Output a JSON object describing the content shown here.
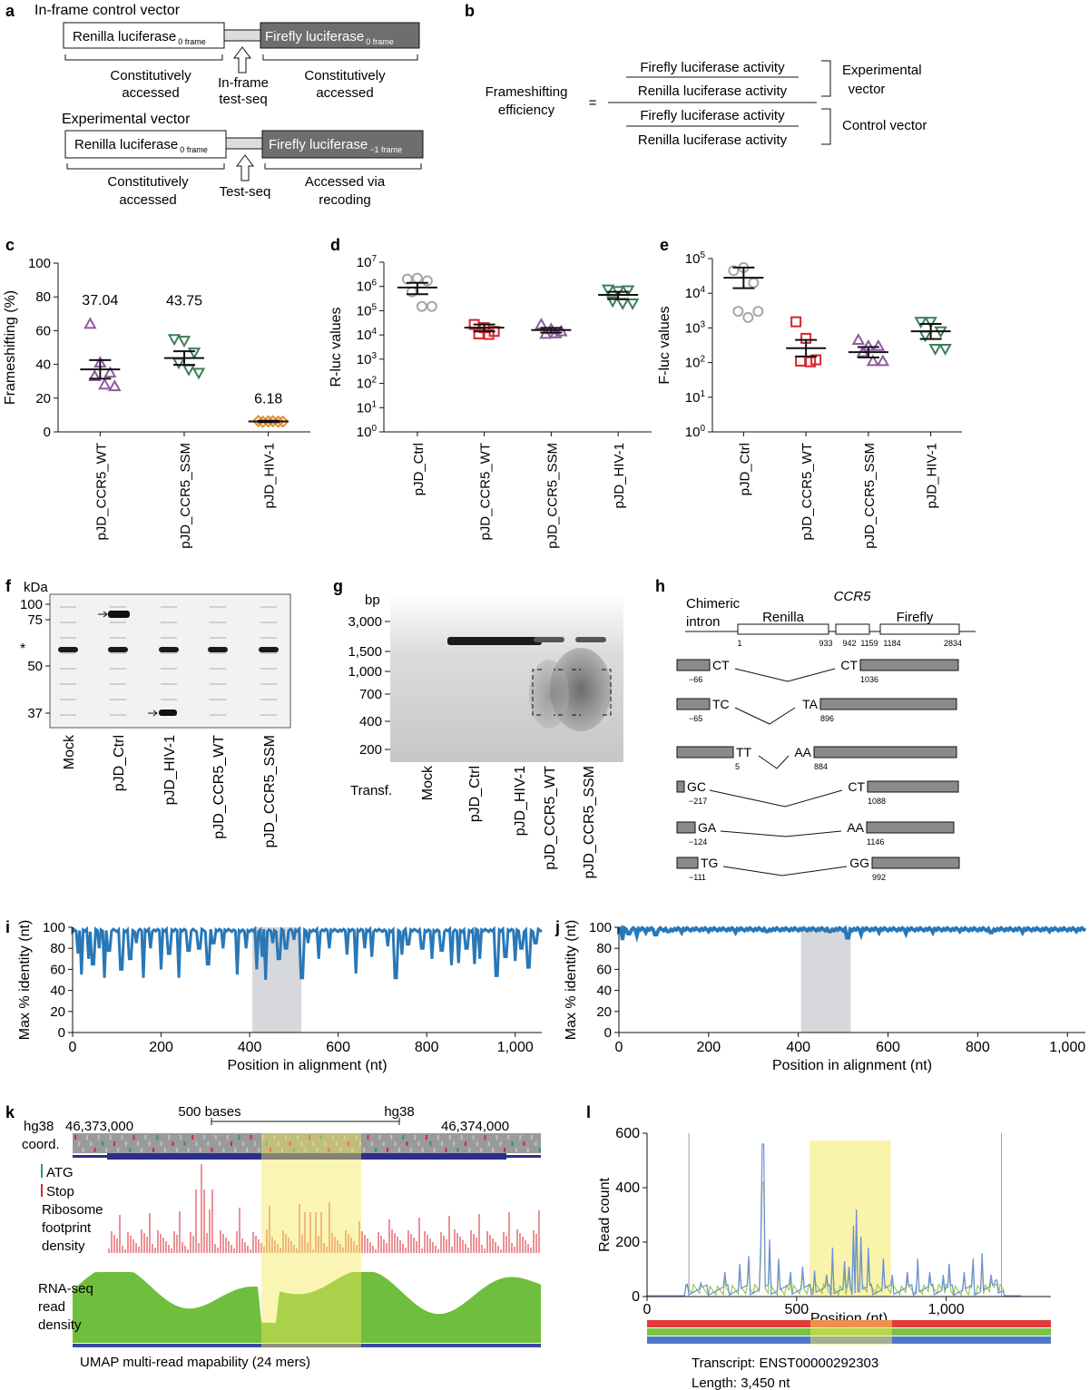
{
  "panels": {
    "a": "a",
    "b": "b",
    "c": "c",
    "d": "d",
    "e": "e",
    "f": "f",
    "g": "g",
    "h": "h",
    "i": "i",
    "j": "j",
    "k": "k",
    "l": "l"
  },
  "panel_a": {
    "control_title": "In-frame control vector",
    "experimental_title": "Experimental vector",
    "renilla": "Renilla luciferase",
    "firefly": "Firefly luciferase",
    "frame0": "0 frame",
    "frame_m1": "−1 frame",
    "constitutive1": "Constitutively",
    "constitutive2": "accessed",
    "inframe1": "In-frame",
    "inframe2": "test-seq",
    "testseq": "Test-seq",
    "recoding1": "Accessed via",
    "recoding2": "recoding"
  },
  "panel_b": {
    "lhs1": "Frameshifting",
    "lhs2": "efficiency",
    "eq": "=",
    "firefly_activity": "Firefly luciferase activity",
    "renilla_activity": "Renilla luciferase activity",
    "exp1": "Experimental",
    "exp2": "vector",
    "control": "Control vector"
  },
  "chart_data": [
    {
      "panel": "c",
      "type": "scatter",
      "ylabel": "Frameshifting (%)",
      "ylim": [
        0,
        100
      ],
      "yticks": [
        0,
        20,
        40,
        60,
        80,
        100
      ],
      "categories": [
        "pJD_CCR5_WT",
        "pJD_CCR5_SSM",
        "pJD_HIV-1"
      ],
      "means": [
        37.04,
        43.75,
        6.18
      ],
      "mean_labels": [
        "37.04",
        "43.75",
        "6.18"
      ],
      "sem": [
        5.5,
        4.0,
        0.4
      ],
      "points": [
        [
          64,
          41,
          35,
          33,
          28,
          27
        ],
        [
          55,
          54,
          47,
          41,
          37,
          35
        ],
        [
          6.4,
          6.2,
          6.1,
          6.0,
          6.3,
          6.1
        ]
      ],
      "colors": [
        "#8e5a9e",
        "#3d7d58",
        "#e38a2e"
      ],
      "markers": [
        "triangle-up",
        "triangle-down",
        "diamond"
      ]
    },
    {
      "panel": "d",
      "type": "scatter",
      "ylabel": "R-luc values",
      "scale": "log",
      "ylim": [
        1,
        10000000
      ],
      "yticks": [
        "10^0",
        "10^1",
        "10^2",
        "10^3",
        "10^4",
        "10^5",
        "10^6",
        "10^7"
      ],
      "categories": [
        "pJD_Ctrl",
        "pJD_CCR5_WT",
        "pJD_CCR5_SSM",
        "pJD_HIV-1"
      ],
      "means": [
        900000,
        20000,
        16000,
        450000
      ],
      "sem_low": [
        480000,
        14000,
        12500,
        300000
      ],
      "sem_high": [
        1400000,
        27000,
        19500,
        600000
      ],
      "points": [
        [
          2000000,
          2200000,
          1700000,
          600000,
          150000,
          150000
        ],
        [
          27000,
          20000,
          14000,
          11000,
          10500
        ],
        [
          27000,
          17000,
          14000,
          11000,
          11500
        ],
        [
          750000,
          650000,
          700000,
          250000,
          200000,
          200000
        ]
      ],
      "colors": [
        "#a6a6a6",
        "#d9262c",
        "#8e5a9e",
        "#3d7d58"
      ],
      "markers": [
        "circle",
        "square",
        "triangle-up",
        "triangle-down"
      ]
    },
    {
      "panel": "e",
      "type": "scatter",
      "ylabel": "F-luc values",
      "scale": "log",
      "ylim": [
        1,
        100000
      ],
      "yticks": [
        "10^0",
        "10^1",
        "10^2",
        "10^3",
        "10^4",
        "10^5"
      ],
      "categories": [
        "pJD_Ctrl",
        "pJD_CCR5_WT",
        "pJD_CCR5_SSM",
        "pJD_HIV-1"
      ],
      "means": [
        28000,
        260,
        200,
        800
      ],
      "sem_low": [
        14000,
        150,
        140,
        480
      ],
      "sem_high": [
        55000,
        450,
        280,
        1300
      ],
      "points": [
        [
          45000,
          55000,
          20000,
          3000,
          2000,
          3000
        ],
        [
          1500,
          500,
          120,
          110,
          105
        ],
        [
          450,
          300,
          300,
          200,
          110,
          110
        ],
        [
          1500,
          1500,
          800,
          600,
          250,
          250
        ]
      ],
      "colors": [
        "#a6a6a6",
        "#d9262c",
        "#8e5a9e",
        "#3d7d58"
      ],
      "markers": [
        "circle",
        "square",
        "triangle-up",
        "triangle-down"
      ]
    },
    {
      "panel": "i",
      "type": "line",
      "xlabel": "Position in alignment (nt)",
      "ylabel": "Max % identity (nt)",
      "xlim": [
        0,
        1060
      ],
      "ylim": [
        0,
        100
      ],
      "xticks": [
        "0",
        "200",
        "400",
        "600",
        "800",
        "1,000"
      ],
      "yticks": [
        "0",
        "20",
        "40",
        "60",
        "80",
        "100"
      ],
      "highlight": [
        406,
        517
      ],
      "baseline": 97,
      "dips": [
        [
          12,
          75
        ],
        [
          20,
          55
        ],
        [
          35,
          70
        ],
        [
          46,
          65
        ],
        [
          60,
          80
        ],
        [
          72,
          52
        ],
        [
          82,
          78
        ],
        [
          110,
          60
        ],
        [
          130,
          70
        ],
        [
          145,
          85
        ],
        [
          160,
          52
        ],
        [
          175,
          80
        ],
        [
          200,
          60
        ],
        [
          218,
          75
        ],
        [
          240,
          52
        ],
        [
          262,
          78
        ],
        [
          286,
          80
        ],
        [
          306,
          65
        ],
        [
          318,
          85
        ],
        [
          340,
          80
        ],
        [
          372,
          55
        ],
        [
          392,
          80
        ],
        [
          416,
          60
        ],
        [
          428,
          72
        ],
        [
          437,
          50
        ],
        [
          452,
          85
        ],
        [
          466,
          70
        ],
        [
          482,
          80
        ],
        [
          500,
          88
        ],
        [
          518,
          52
        ],
        [
          532,
          85
        ],
        [
          556,
          70
        ],
        [
          580,
          80
        ],
        [
          620,
          74
        ],
        [
          640,
          56
        ],
        [
          660,
          80
        ],
        [
          676,
          72
        ],
        [
          712,
          82
        ],
        [
          730,
          52
        ],
        [
          744,
          74
        ],
        [
          758,
          84
        ],
        [
          790,
          80
        ],
        [
          812,
          70
        ],
        [
          834,
          78
        ],
        [
          856,
          64
        ],
        [
          872,
          66
        ],
        [
          890,
          80
        ],
        [
          908,
          65
        ],
        [
          920,
          70
        ],
        [
          958,
          54
        ],
        [
          978,
          72
        ],
        [
          1000,
          68
        ],
        [
          1014,
          80
        ],
        [
          1030,
          62
        ],
        [
          1046,
          85
        ]
      ]
    },
    {
      "panel": "j",
      "type": "line",
      "xlabel": "Position in alignment (nt)",
      "ylabel": "Max % identity (nt)",
      "xlim": [
        0,
        1040
      ],
      "ylim": [
        0,
        100
      ],
      "xticks": [
        "0",
        "200",
        "400",
        "600",
        "800",
        "1,000"
      ],
      "yticks": [
        "0",
        "20",
        "40",
        "60",
        "80",
        "100"
      ],
      "highlight": [
        406,
        517
      ],
      "baseline": 98,
      "dips": [
        [
          8,
          88
        ],
        [
          22,
          94
        ],
        [
          40,
          92
        ],
        [
          60,
          95
        ],
        [
          82,
          93
        ],
        [
          110,
          96
        ],
        [
          140,
          95
        ],
        [
          200,
          96
        ],
        [
          260,
          95
        ],
        [
          330,
          96
        ],
        [
          420,
          97
        ],
        [
          470,
          96
        ],
        [
          510,
          90
        ],
        [
          540,
          93
        ],
        [
          580,
          95
        ],
        [
          640,
          94
        ],
        [
          700,
          95
        ],
        [
          760,
          96
        ],
        [
          830,
          95
        ],
        [
          900,
          95
        ],
        [
          960,
          96
        ],
        [
          1020,
          96
        ]
      ]
    },
    {
      "panel": "l",
      "type": "line",
      "xlabel": "Position (nt)",
      "ylabel": "Read count",
      "xlim": [
        0,
        1350
      ],
      "ylim": [
        0,
        600
      ],
      "xticks": [
        "0",
        "500",
        "1,000"
      ],
      "yticks": [
        "0",
        "200",
        "400",
        "600"
      ],
      "highlight": [
        543,
        815
      ],
      "cds_boundaries": [
        140,
        1185
      ],
      "peaks": [
        [
          180,
          50
        ],
        [
          260,
          90
        ],
        [
          310,
          120
        ],
        [
          340,
          150
        ],
        [
          380,
          190
        ],
        [
          388,
          560
        ],
        [
          410,
          210
        ],
        [
          440,
          140
        ],
        [
          480,
          90
        ],
        [
          520,
          110
        ],
        [
          560,
          95
        ],
        [
          600,
          80
        ],
        [
          620,
          180
        ],
        [
          660,
          130
        ],
        [
          675,
          110
        ],
        [
          690,
          260
        ],
        [
          700,
          320
        ],
        [
          715,
          220
        ],
        [
          740,
          180
        ],
        [
          790,
          140
        ],
        [
          820,
          80
        ],
        [
          870,
          90
        ],
        [
          905,
          140
        ],
        [
          945,
          90
        ],
        [
          990,
          80
        ],
        [
          1010,
          120
        ],
        [
          1060,
          90
        ],
        [
          1090,
          140
        ],
        [
          1120,
          160
        ],
        [
          1150,
          80
        ],
        [
          1168,
          60
        ]
      ]
    }
  ],
  "panel_f": {
    "unit": "kDa",
    "ticks": [
      "100",
      "75",
      "50",
      "37"
    ],
    "lanes": [
      "Mock",
      "pJD_Ctrl",
      "pJD_HIV-1",
      "pJD_CCR5_WT",
      "pJD_CCR5_SSM"
    ],
    "star": "*"
  },
  "panel_g": {
    "unit": "bp",
    "ticks": [
      "3,000",
      "1,500",
      "1,000",
      "700",
      "400",
      "200"
    ],
    "lanes": [
      "Mock",
      "pJD_Ctrl",
      "pJD_HIV-1",
      "pJD_CCR5_WT",
      "pJD_CCR5_SSM"
    ],
    "row_label": "Transf."
  },
  "panel_h": {
    "chimeric1": "Chimeric",
    "chimeric2": "intron",
    "renilla": "Renilla",
    "ccr5": "CCR5",
    "firefly": "Firefly",
    "coords": [
      "1",
      "933",
      "942",
      "1159",
      "1184",
      "2834"
    ],
    "junctions": [
      {
        "left": "CT",
        "left_pos": "−66",
        "right": "CT",
        "right_pos": "1036"
      },
      {
        "left": "TC",
        "left_pos": "−65",
        "right": "TA",
        "right_pos": "896"
      },
      {
        "left": "TT",
        "left_pos": "5",
        "right": "AA",
        "right_pos": "884"
      },
      {
        "left": "GC",
        "left_pos": "−217",
        "right": "CT",
        "right_pos": "1088"
      },
      {
        "left": "GA",
        "left_pos": "−124",
        "right": "AA",
        "right_pos": "1146"
      },
      {
        "left": "TG",
        "left_pos": "−111",
        "right": "GG",
        "right_pos": "992"
      }
    ]
  },
  "panel_k": {
    "hg38": "hg38",
    "coord": "coord.",
    "pos1": "46,373,000",
    "pos2": "46,374,000",
    "scale": "500 bases",
    "scale_hg": "hg38",
    "atg": "ATG",
    "stop": "Stop",
    "ribo1": "Ribosome",
    "ribo2": "footprint",
    "ribo3": "density",
    "rna1": "RNA-seq",
    "rna2": "read",
    "rna3": "density",
    "umap": "UMAP multi-read mapability (24 mers)"
  },
  "panel_l": {
    "transcript": "Transcript: ENST00000292303",
    "length": "Length: 3,450 nt"
  }
}
